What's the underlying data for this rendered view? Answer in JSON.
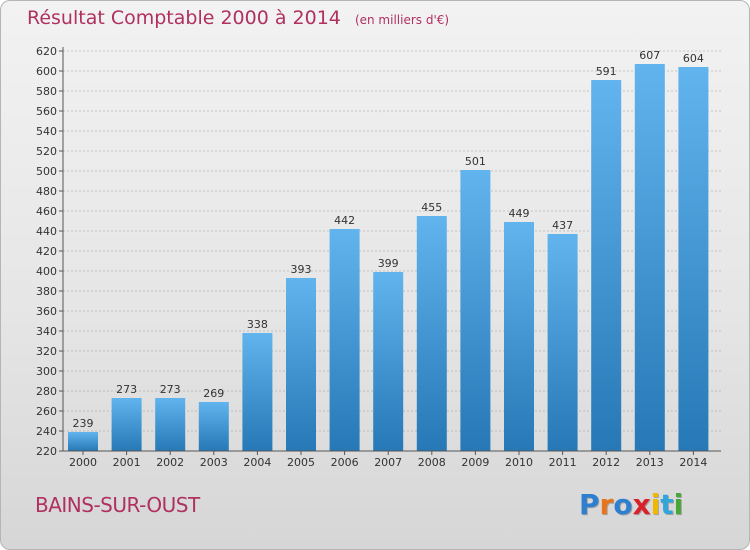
{
  "header": {
    "title": "Résultat Comptable 2000 à 2014",
    "unit": "(en milliers d'€)"
  },
  "footer": {
    "commune": "BAINS-SUR-OUST",
    "logo_letters": [
      "P",
      "r",
      "o",
      "x",
      "i",
      "t",
      "i"
    ],
    "logo_colors": [
      "#2f7fd0",
      "#e8731a",
      "#2f7fd0",
      "#d9222a",
      "#f0b800",
      "#32a6d8",
      "#47a838"
    ]
  },
  "colors": {
    "title": "#b03060",
    "bar_top": "#62b4ee",
    "bar_bottom": "#2678b6",
    "grid": "#9a9a9a"
  },
  "chart_data": {
    "type": "bar",
    "title": "Résultat Comptable 2000 à 2014",
    "subtitle": "(en milliers d'€)",
    "categories": [
      "2000",
      "2001",
      "2002",
      "2003",
      "2004",
      "2005",
      "2006",
      "2007",
      "2008",
      "2009",
      "2010",
      "2011",
      "2012",
      "2013",
      "2014"
    ],
    "values": [
      239,
      273,
      273,
      269,
      338,
      393,
      442,
      399,
      455,
      501,
      449,
      437,
      591,
      607,
      604
    ],
    "ylim": [
      220,
      620
    ],
    "ystep": 20,
    "grid": true,
    "xlabel": "",
    "ylabel": ""
  }
}
